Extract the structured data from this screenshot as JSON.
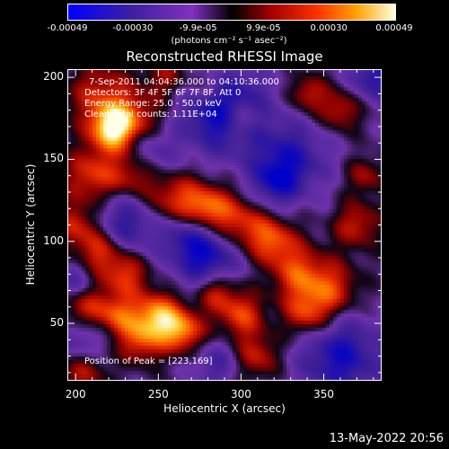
{
  "colorbar": {
    "ticks": [
      "-0.00049",
      "-0.00030",
      "-9.9e-05",
      "9.9e-05",
      "0.00030",
      "0.00049"
    ],
    "units": "(photons cm⁻² s⁻¹ asec⁻²)"
  },
  "chart_data": {
    "type": "heatmap",
    "title": "Reconstructed RHESSI Image",
    "xlabel": "Heliocentric X (arcsec)",
    "ylabel": "Heliocentric Y (arcsec)",
    "xlim": [
      195,
      385
    ],
    "ylim": [
      15,
      205
    ],
    "x_ticks": [
      200,
      250,
      300,
      350
    ],
    "y_ticks": [
      50,
      100,
      150,
      200
    ],
    "colorscale_range": [
      -0.00049,
      0.00049
    ],
    "peak": [
      223,
      169
    ],
    "annotations": {
      "time": "7-Sep-2011 04:04:36.000 to 04:10:36.000",
      "detectors": "Detectors: 3F 4F 5F 6F 7F 8F, Att 0",
      "energy": "Energy Range: 25.0 - 50.0 keV",
      "clean": "Clean      Total counts: 1.11E+04",
      "peak_text": "Position of Peak = [223,169]"
    }
  },
  "footer": "13-May-2022 20:56"
}
